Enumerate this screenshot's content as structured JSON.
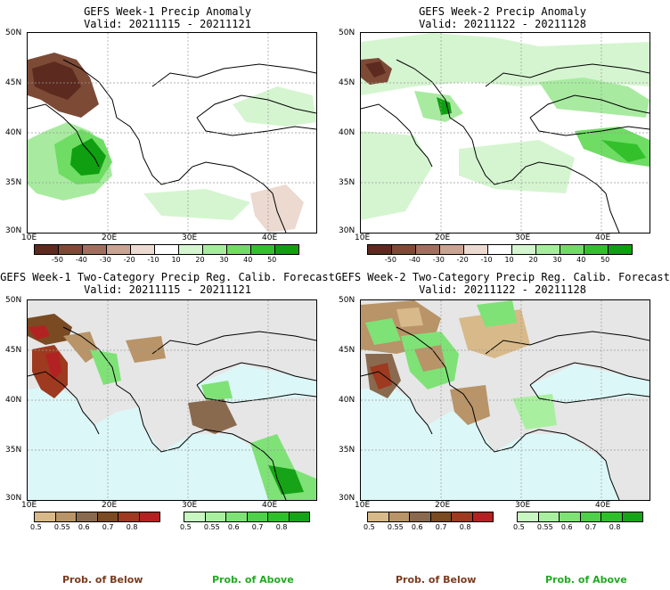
{
  "panels": [
    {
      "title": "GEFS Week-1 Precip Anomaly",
      "valid": "Valid: 20211115 - 20211121"
    },
    {
      "title": "GEFS Week-2 Precip Anomaly",
      "valid": "Valid: 20211122 - 20211128"
    },
    {
      "title": "GEFS Week-1 Two-Category Precip Reg. Calib. Forecast",
      "valid": "Valid: 20211115 - 20211121"
    },
    {
      "title": "GEFS Week-2 Two-Category Precip Reg. Calib. Forecast",
      "valid": "Valid: 20211122 - 20211128"
    }
  ],
  "lat_labels": [
    "50N",
    "45N",
    "40N",
    "35N",
    "30N"
  ],
  "lon_labels": [
    "10E",
    "20E",
    "30E",
    "40E"
  ],
  "anomaly_colorbar": {
    "labels": [
      "-50",
      "-40",
      "-30",
      "-20",
      "-10",
      "10",
      "20",
      "30",
      "40",
      "50"
    ],
    "colors": [
      "#5c2a1e",
      "#7d4a36",
      "#a0705e",
      "#c9a493",
      "#ecd9cf",
      "#ffffff",
      "#d5f5d0",
      "#a8eba0",
      "#6fdc64",
      "#32c12a",
      "#0f9f10"
    ]
  },
  "below_colorbar": {
    "labels": [
      "0.5",
      "0.55",
      "0.6",
      "0.7",
      "0.8"
    ],
    "colors": [
      "#d8b98a",
      "#b89468",
      "#8a6a4f",
      "#7a4b22",
      "#9e3a1f",
      "#b22222"
    ]
  },
  "above_colorbar": {
    "labels": [
      "0.5",
      "0.55",
      "0.6",
      "0.7",
      "0.8"
    ],
    "colors": [
      "#c9f7c2",
      "#a8f0a0",
      "#7fe277",
      "#4fd04a",
      "#2fbf2a",
      "#17a317"
    ]
  },
  "legend": {
    "below": "Prob. of Below",
    "above": "Prob. of Above",
    "below_color": "#7a3b1e",
    "above_color": "#22aa22"
  },
  "colors": {
    "land_gray": "#e6e6e6",
    "sea": "#dcf7f7"
  }
}
